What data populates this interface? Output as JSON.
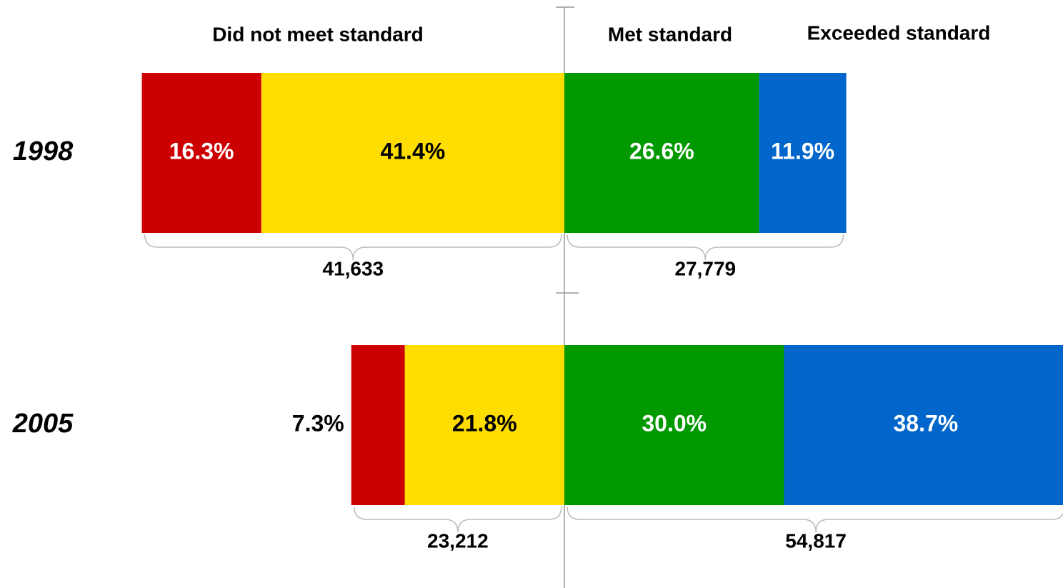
{
  "chart_data": {
    "type": "diverging-bar",
    "headers": [
      "Did not meet standard",
      "Met standard",
      "Exceeded standard"
    ],
    "categories": [
      "1998",
      "2005"
    ],
    "series": [
      {
        "color": "#cc0000",
        "label_color": "#ffffff",
        "side": "negative",
        "values": [
          16.3,
          7.3
        ],
        "value_labels": [
          "16.3%",
          "7.3%"
        ]
      },
      {
        "color": "#ffdd00",
        "label_color": "#000000",
        "side": "negative",
        "values": [
          41.4,
          21.8
        ],
        "value_labels": [
          "41.4%",
          "21.8%"
        ]
      },
      {
        "color": "#009900",
        "label_color": "#ffffff",
        "side": "positive",
        "values": [
          26.6,
          30.0
        ],
        "value_labels": [
          "26.6%",
          "30.0%"
        ]
      },
      {
        "color": "#0066cc",
        "label_color": "#ffffff",
        "side": "positive",
        "values": [
          11.9,
          38.7
        ],
        "value_labels": [
          "11.9%",
          "38.7%"
        ]
      }
    ],
    "negative_totals": [
      41633,
      23212
    ],
    "negative_total_labels": [
      "41,633",
      "23,212"
    ],
    "positive_totals": [
      27779,
      54817
    ],
    "positive_total_labels": [
      "27,779",
      "54,817"
    ]
  }
}
